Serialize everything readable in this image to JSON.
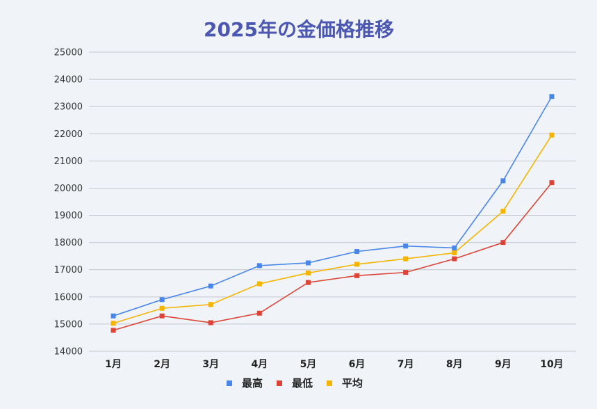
{
  "chart_data": {
    "type": "line",
    "title": "2025年の金価格推移",
    "xlabel": "",
    "ylabel": "",
    "categories": [
      "1月",
      "2月",
      "3月",
      "4月",
      "5月",
      "6月",
      "7月",
      "8月",
      "9月",
      "10月"
    ],
    "ylim": [
      14000,
      25000
    ],
    "yticks": [
      14000,
      15000,
      16000,
      17000,
      18000,
      19000,
      20000,
      21000,
      22000,
      23000,
      24000,
      25000
    ],
    "grid": true,
    "legend_position": "bottom",
    "series": [
      {
        "name": "最高",
        "color": "#4a86e8",
        "values": [
          15300,
          15900,
          16400,
          17150,
          17250,
          17670,
          17870,
          17800,
          20270,
          23370
        ]
      },
      {
        "name": "最低",
        "color": "#db4437",
        "values": [
          14770,
          15300,
          15050,
          15400,
          16530,
          16780,
          16900,
          17400,
          18000,
          20200
        ]
      },
      {
        "name": "平均",
        "color": "#f4b400",
        "values": [
          15030,
          15580,
          15720,
          16480,
          16880,
          17200,
          17400,
          17620,
          19150,
          21950
        ]
      }
    ]
  }
}
